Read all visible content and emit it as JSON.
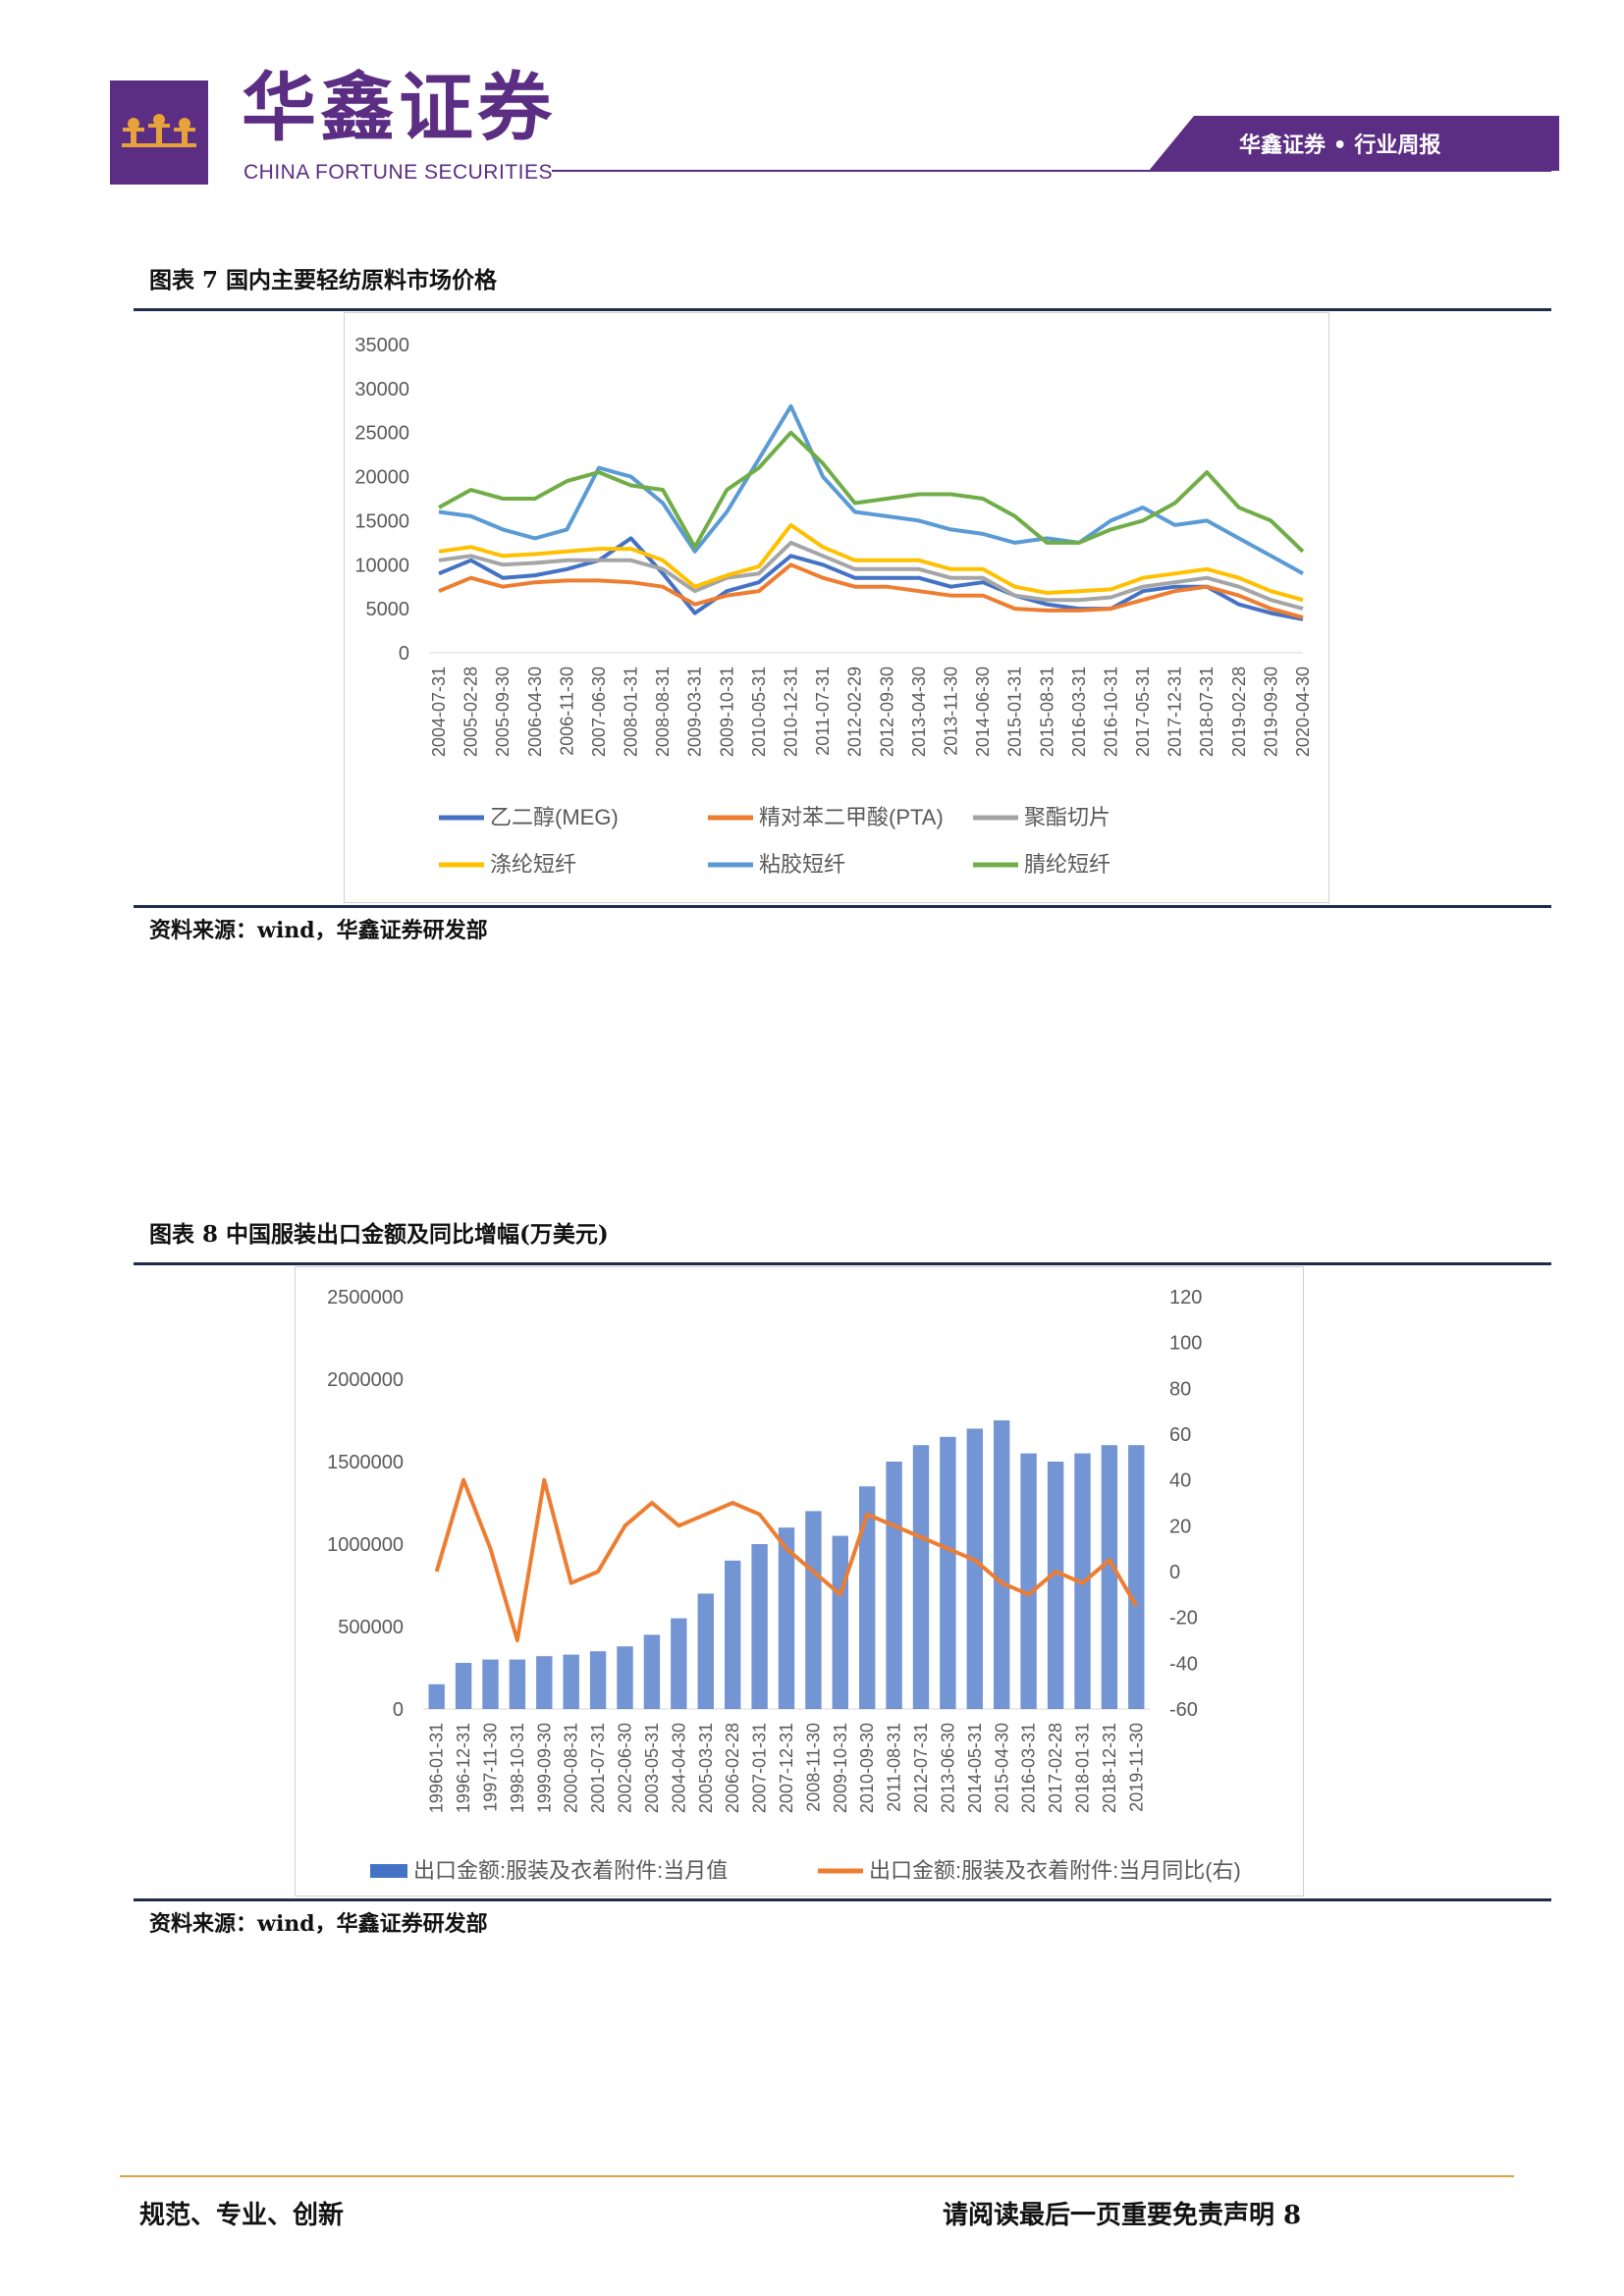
{
  "header": {
    "logo_cn": "华鑫证券",
    "logo_en": "CHINA FORTUNE SECURITIES",
    "tag": "华鑫证券 • 行业周报",
    "brand_color": "#5b2d83"
  },
  "figure7": {
    "title": "图表 7 国内主要轻纺原料市场价格",
    "source": "资料来源：wind，华鑫证券研发部",
    "chart_data": {
      "type": "line",
      "x": [
        "2004-07-31",
        "2005-02-28",
        "2005-09-30",
        "2006-04-30",
        "2006-11-30",
        "2007-06-30",
        "2008-01-31",
        "2008-08-31",
        "2009-03-31",
        "2009-10-31",
        "2010-05-31",
        "2010-12-31",
        "2011-07-31",
        "2012-02-29",
        "2012-09-30",
        "2013-04-30",
        "2013-11-30",
        "2014-06-30",
        "2015-01-31",
        "2015-08-31",
        "2016-03-31",
        "2016-10-31",
        "2017-05-31",
        "2017-12-31",
        "2018-07-31",
        "2019-02-28",
        "2019-09-30",
        "2020-04-30"
      ],
      "ylim": [
        0,
        35000
      ],
      "yticks": [
        "35000",
        "30000",
        "25000",
        "20000",
        "15000",
        "10000",
        "5000",
        "0"
      ],
      "series": [
        {
          "name": "乙二醇(MEG)",
          "color": "#4472c4",
          "values": [
            9000,
            10500,
            8500,
            8800,
            9500,
            10500,
            13000,
            9000,
            4500,
            7000,
            8000,
            11000,
            10000,
            8500,
            8500,
            8500,
            7500,
            8000,
            6500,
            5500,
            5000,
            5000,
            7000,
            7500,
            7500,
            5500,
            4500,
            3800
          ]
        },
        {
          "name": "精对苯二甲酸(PTA)",
          "color": "#ed7d31",
          "values": [
            7000,
            8500,
            7500,
            8000,
            8200,
            8200,
            8000,
            7500,
            5500,
            6500,
            7000,
            10000,
            8500,
            7500,
            7500,
            7000,
            6500,
            6500,
            5000,
            4800,
            4800,
            5000,
            6000,
            7000,
            7500,
            6500,
            5000,
            4000
          ]
        },
        {
          "name": "聚酯切片",
          "color": "#a5a5a5",
          "values": [
            10500,
            11000,
            10000,
            10200,
            10500,
            10500,
            10500,
            9500,
            7000,
            8500,
            9000,
            12500,
            11000,
            9500,
            9500,
            9500,
            8500,
            8500,
            6500,
            6000,
            6000,
            6300,
            7500,
            8000,
            8500,
            7500,
            6000,
            5000
          ]
        },
        {
          "name": "涤纶短纤",
          "color": "#ffc000",
          "values": [
            11500,
            12000,
            11000,
            11200,
            11500,
            11800,
            11800,
            10500,
            7500,
            8800,
            9800,
            14500,
            12000,
            10500,
            10500,
            10500,
            9500,
            9500,
            7500,
            6800,
            7000,
            7200,
            8500,
            9000,
            9500,
            8500,
            7000,
            6000
          ]
        },
        {
          "name": "粘胶短纤",
          "color": "#5b9bd5",
          "values": [
            16000,
            15500,
            14000,
            13000,
            14000,
            21000,
            20000,
            17000,
            11500,
            16000,
            22000,
            28000,
            20000,
            16000,
            15500,
            15000,
            14000,
            13500,
            12500,
            13000,
            12500,
            15000,
            16500,
            14500,
            15000,
            13000,
            11000,
            9000
          ]
        },
        {
          "name": "腈纶短纤",
          "color": "#70ad47",
          "values": [
            16500,
            18500,
            17500,
            17500,
            19500,
            20500,
            19000,
            18500,
            12000,
            18500,
            21000,
            25000,
            21500,
            17000,
            17500,
            18000,
            18000,
            17500,
            15500,
            12500,
            12500,
            14000,
            15000,
            17000,
            20500,
            16500,
            15000,
            11500
          ]
        }
      ]
    }
  },
  "figure8": {
    "title": "图表 8 中国服装出口金额及同比增幅(万美元)",
    "source": "资料来源：wind，华鑫证券研发部",
    "chart_data": {
      "type": "bar",
      "x": [
        "1996-01-31",
        "1996-12-31",
        "1997-11-30",
        "1998-10-31",
        "1999-09-30",
        "2000-08-31",
        "2001-07-31",
        "2002-06-30",
        "2003-05-31",
        "2004-04-30",
        "2005-03-31",
        "2006-02-28",
        "2007-01-31",
        "2007-12-31",
        "2008-11-30",
        "2009-10-31",
        "2010-09-30",
        "2011-08-31",
        "2012-07-31",
        "2013-06-30",
        "2014-05-31",
        "2015-04-30",
        "2016-03-31",
        "2017-02-28",
        "2018-01-31",
        "2018-12-31",
        "2019-11-30"
      ],
      "ylim_left": [
        0,
        2500000
      ],
      "ylim_right": [
        -60,
        120
      ],
      "yticks_left": [
        "2500000",
        "2000000",
        "1500000",
        "1000000",
        "500000",
        "0"
      ],
      "yticks_right": [
        "120",
        "100",
        "80",
        "60",
        "40",
        "20",
        "0",
        "-20",
        "-40",
        "-60"
      ],
      "series": [
        {
          "name": "出口金额:服装及衣着附件:当月值",
          "axis": "left",
          "color": "#4472c4",
          "type": "bar",
          "values": [
            150000,
            280000,
            300000,
            300000,
            320000,
            330000,
            350000,
            380000,
            450000,
            550000,
            700000,
            900000,
            1000000,
            1100000,
            1200000,
            1050000,
            1350000,
            1500000,
            1600000,
            1650000,
            1700000,
            1750000,
            1550000,
            1500000,
            1550000,
            1600000,
            1600000
          ]
        },
        {
          "name": "出口金额:服装及衣着附件:当月同比(右)",
          "axis": "right",
          "color": "#ed7d31",
          "type": "line",
          "values": [
            0,
            40,
            10,
            -30,
            40,
            -5,
            0,
            20,
            30,
            20,
            25,
            30,
            25,
            10,
            0,
            -10,
            25,
            20,
            15,
            10,
            5,
            -5,
            -10,
            0,
            -5,
            5,
            -15
          ]
        }
      ]
    }
  },
  "footer": {
    "left": "规范、专业、创新",
    "right": "请阅读最后一页重要免责声明 8",
    "rule_color": "#d9a441"
  }
}
